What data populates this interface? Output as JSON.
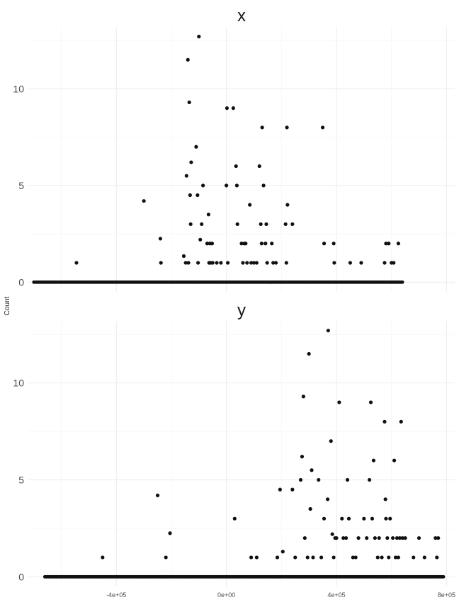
{
  "chart_data": {
    "type": "scatter",
    "ylabel": "Count",
    "xlim": [
      -720000,
      830000
    ],
    "ylim": [
      -0.5,
      13.2
    ],
    "x_ticks": [
      -400000,
      0,
      400000,
      800000
    ],
    "x_tick_labels": [
      "-4e+05",
      "0e+00",
      "4e+05",
      "8e+05"
    ],
    "y_ticks": [
      0,
      5,
      10
    ],
    "y_tick_labels": [
      "0",
      "5",
      "10"
    ],
    "grid": true,
    "panels": [
      {
        "title": "x",
        "baseline": {
          "y": 0,
          "x_from": -700000,
          "x_to": 640000
        },
        "points": [
          {
            "x": -545000,
            "y": 1
          },
          {
            "x": -300000,
            "y": 4.2
          },
          {
            "x": -240000,
            "y": 2.25
          },
          {
            "x": -238000,
            "y": 1
          },
          {
            "x": -155000,
            "y": 1.35
          },
          {
            "x": -145000,
            "y": 5.5
          },
          {
            "x": -140000,
            "y": 11.5
          },
          {
            "x": -135000,
            "y": 9.3
          },
          {
            "x": -148000,
            "y": 1
          },
          {
            "x": -138000,
            "y": 1
          },
          {
            "x": -132000,
            "y": 4.5
          },
          {
            "x": -130000,
            "y": 3
          },
          {
            "x": -128000,
            "y": 6.2
          },
          {
            "x": -110000,
            "y": 7
          },
          {
            "x": -100000,
            "y": 12.7
          },
          {
            "x": -105000,
            "y": 4.5
          },
          {
            "x": -103000,
            "y": 1
          },
          {
            "x": -95000,
            "y": 2.2
          },
          {
            "x": -90000,
            "y": 3
          },
          {
            "x": -85000,
            "y": 5
          },
          {
            "x": -70000,
            "y": 2
          },
          {
            "x": -65000,
            "y": 3.5
          },
          {
            "x": -63000,
            "y": 1
          },
          {
            "x": -60000,
            "y": 2
          },
          {
            "x": -57000,
            "y": 1
          },
          {
            "x": -52000,
            "y": 2
          },
          {
            "x": -50000,
            "y": 1
          },
          {
            "x": -35000,
            "y": 1
          },
          {
            "x": -20000,
            "y": 1
          },
          {
            "x": 0,
            "y": 5
          },
          {
            "x": 2000,
            "y": 9
          },
          {
            "x": 5000,
            "y": 1
          },
          {
            "x": 25000,
            "y": 9
          },
          {
            "x": 35000,
            "y": 6
          },
          {
            "x": 38000,
            "y": 5
          },
          {
            "x": 40000,
            "y": 3
          },
          {
            "x": 55000,
            "y": 2
          },
          {
            "x": 60000,
            "y": 1
          },
          {
            "x": 65000,
            "y": 2
          },
          {
            "x": 70000,
            "y": 2
          },
          {
            "x": 75000,
            "y": 1
          },
          {
            "x": 85000,
            "y": 4
          },
          {
            "x": 90000,
            "y": 1
          },
          {
            "x": 100000,
            "y": 1
          },
          {
            "x": 110000,
            "y": 1
          },
          {
            "x": 120000,
            "y": 6
          },
          {
            "x": 125000,
            "y": 3
          },
          {
            "x": 128000,
            "y": 2
          },
          {
            "x": 130000,
            "y": 8
          },
          {
            "x": 135000,
            "y": 5
          },
          {
            "x": 142000,
            "y": 2
          },
          {
            "x": 145000,
            "y": 3
          },
          {
            "x": 148000,
            "y": 1
          },
          {
            "x": 165000,
            "y": 2
          },
          {
            "x": 170000,
            "y": 1
          },
          {
            "x": 180000,
            "y": 1
          },
          {
            "x": 220000,
            "y": 8
          },
          {
            "x": 222000,
            "y": 4
          },
          {
            "x": 215000,
            "y": 3
          },
          {
            "x": 218000,
            "y": 1
          },
          {
            "x": 240000,
            "y": 3
          },
          {
            "x": 350000,
            "y": 8
          },
          {
            "x": 355000,
            "y": 2
          },
          {
            "x": 390000,
            "y": 2
          },
          {
            "x": 392000,
            "y": 1
          },
          {
            "x": 450000,
            "y": 1
          },
          {
            "x": 490000,
            "y": 1
          },
          {
            "x": 575000,
            "y": 1
          },
          {
            "x": 580000,
            "y": 2
          },
          {
            "x": 590000,
            "y": 2
          },
          {
            "x": 600000,
            "y": 1
          },
          {
            "x": 608000,
            "y": 1
          },
          {
            "x": 625000,
            "y": 2
          }
        ]
      },
      {
        "title": "y",
        "baseline": {
          "y": 0,
          "x_from": -660000,
          "x_to": 790000
        },
        "points": [
          {
            "x": -450000,
            "y": 1
          },
          {
            "x": -250000,
            "y": 4.2
          },
          {
            "x": -220000,
            "y": 1
          },
          {
            "x": -205000,
            "y": 2.25
          },
          {
            "x": 30000,
            "y": 3
          },
          {
            "x": 90000,
            "y": 1
          },
          {
            "x": 110000,
            "y": 1
          },
          {
            "x": 185000,
            "y": 1
          },
          {
            "x": 195000,
            "y": 4.5
          },
          {
            "x": 205000,
            "y": 1.3
          },
          {
            "x": 240000,
            "y": 4.5
          },
          {
            "x": 250000,
            "y": 1
          },
          {
            "x": 270000,
            "y": 5
          },
          {
            "x": 275000,
            "y": 6.2
          },
          {
            "x": 280000,
            "y": 9.3
          },
          {
            "x": 285000,
            "y": 2
          },
          {
            "x": 295000,
            "y": 1
          },
          {
            "x": 300000,
            "y": 11.5
          },
          {
            "x": 305000,
            "y": 3.5
          },
          {
            "x": 310000,
            "y": 5.5
          },
          {
            "x": 315000,
            "y": 1
          },
          {
            "x": 335000,
            "y": 5
          },
          {
            "x": 345000,
            "y": 1
          },
          {
            "x": 355000,
            "y": 3
          },
          {
            "x": 368000,
            "y": 4
          },
          {
            "x": 370000,
            "y": 12.7
          },
          {
            "x": 380000,
            "y": 7
          },
          {
            "x": 385000,
            "y": 2.2
          },
          {
            "x": 390000,
            "y": 1
          },
          {
            "x": 395000,
            "y": 2
          },
          {
            "x": 400000,
            "y": 2
          },
          {
            "x": 410000,
            "y": 9
          },
          {
            "x": 420000,
            "y": 3
          },
          {
            "x": 425000,
            "y": 2
          },
          {
            "x": 435000,
            "y": 2
          },
          {
            "x": 440000,
            "y": 5
          },
          {
            "x": 445000,
            "y": 3
          },
          {
            "x": 460000,
            "y": 1
          },
          {
            "x": 470000,
            "y": 1
          },
          {
            "x": 480000,
            "y": 2
          },
          {
            "x": 500000,
            "y": 3
          },
          {
            "x": 510000,
            "y": 2
          },
          {
            "x": 520000,
            "y": 5
          },
          {
            "x": 525000,
            "y": 9
          },
          {
            "x": 530000,
            "y": 3
          },
          {
            "x": 535000,
            "y": 6
          },
          {
            "x": 540000,
            "y": 2
          },
          {
            "x": 550000,
            "y": 1
          },
          {
            "x": 555000,
            "y": 2
          },
          {
            "x": 565000,
            "y": 1
          },
          {
            "x": 575000,
            "y": 8
          },
          {
            "x": 578000,
            "y": 4
          },
          {
            "x": 580000,
            "y": 3
          },
          {
            "x": 585000,
            "y": 2
          },
          {
            "x": 590000,
            "y": 1
          },
          {
            "x": 595000,
            "y": 3
          },
          {
            "x": 605000,
            "y": 2
          },
          {
            "x": 610000,
            "y": 6
          },
          {
            "x": 615000,
            "y": 1
          },
          {
            "x": 620000,
            "y": 2
          },
          {
            "x": 625000,
            "y": 1
          },
          {
            "x": 630000,
            "y": 2
          },
          {
            "x": 635000,
            "y": 8
          },
          {
            "x": 640000,
            "y": 2
          },
          {
            "x": 650000,
            "y": 2
          },
          {
            "x": 680000,
            "y": 1
          },
          {
            "x": 700000,
            "y": 2
          },
          {
            "x": 720000,
            "y": 1
          },
          {
            "x": 760000,
            "y": 2
          },
          {
            "x": 765000,
            "y": 1
          },
          {
            "x": 770000,
            "y": 2
          }
        ]
      }
    ]
  }
}
